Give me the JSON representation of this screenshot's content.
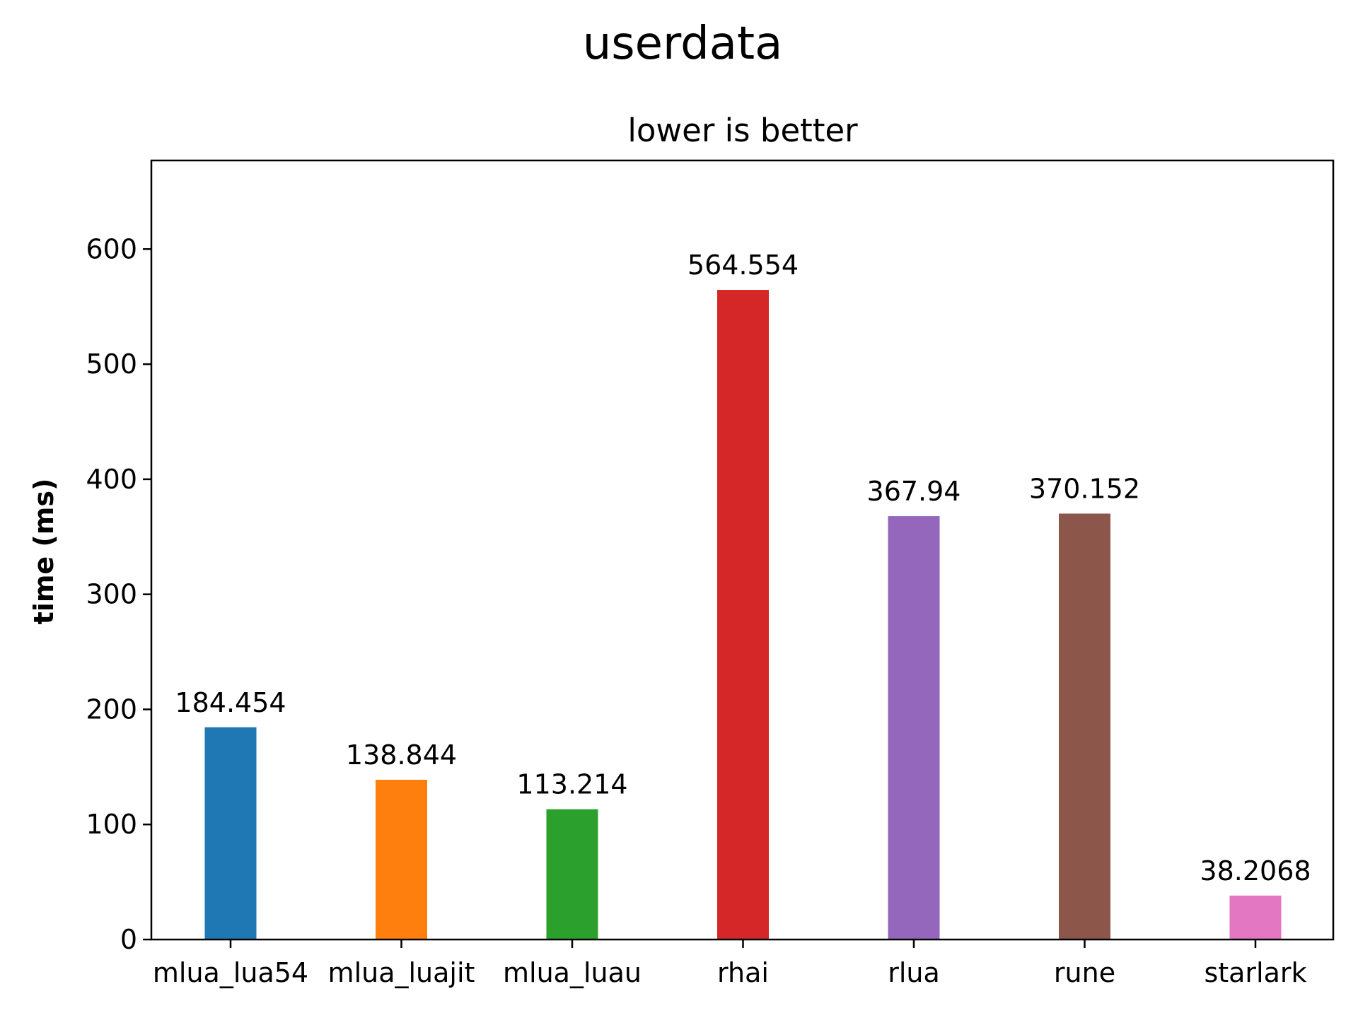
{
  "chart_data": {
    "type": "bar",
    "title": "userdata",
    "subtitle": "lower is better",
    "xlabel": "",
    "ylabel": "time (ms)",
    "ylim": [
      0,
      677
    ],
    "yticks": [
      0,
      100,
      200,
      300,
      400,
      500,
      600
    ],
    "grid": false,
    "categories": [
      "mlua_lua54",
      "mlua_luajit",
      "mlua_luau",
      "rhai",
      "rlua",
      "rune",
      "starlark"
    ],
    "values": [
      184.454,
      138.844,
      113.214,
      564.554,
      367.94,
      370.152,
      38.2068
    ],
    "value_labels": [
      "184.454",
      "138.844",
      "113.214",
      "564.554",
      "367.94",
      "370.152",
      "38.2068"
    ],
    "colors": [
      "#1f77b4",
      "#ff7f0e",
      "#2ca02c",
      "#d62728",
      "#9467bd",
      "#8c564b",
      "#e377c2"
    ]
  }
}
